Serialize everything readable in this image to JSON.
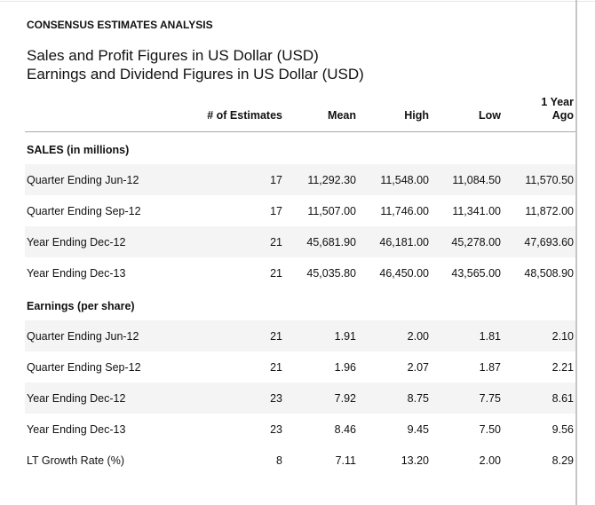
{
  "page": {
    "eyebrow": "CONSENSUS ESTIMATES ANALYSIS",
    "title_line1": "Sales and Profit Figures in US Dollar (USD)",
    "title_line2": "Earnings and Dividend Figures in US Dollar (USD)"
  },
  "table": {
    "columns": {
      "estimates": "# of Estimates",
      "mean": "Mean",
      "high": "High",
      "low": "Low",
      "year_ago": "1 Year Ago"
    },
    "sections": [
      {
        "header": "SALES (in millions)",
        "rows": [
          {
            "label": "Quarter Ending Jun-12",
            "values": [
              "17",
              "11,292.30",
              "11,548.00",
              "11,084.50",
              "11,570.50"
            ],
            "striped": true
          },
          {
            "label": "Quarter Ending Sep-12",
            "values": [
              "17",
              "11,507.00",
              "11,746.00",
              "11,341.00",
              "11,872.00"
            ],
            "striped": false
          },
          {
            "label": "Year Ending Dec-12",
            "values": [
              "21",
              "45,681.90",
              "46,181.00",
              "45,278.00",
              "47,693.60"
            ],
            "striped": true
          },
          {
            "label": "Year Ending Dec-13",
            "values": [
              "21",
              "45,035.80",
              "46,450.00",
              "43,565.00",
              "48,508.90"
            ],
            "striped": false
          }
        ]
      },
      {
        "header": "Earnings (per share)",
        "rows": [
          {
            "label": "Quarter Ending Jun-12",
            "values": [
              "21",
              "1.91",
              "2.00",
              "1.81",
              "2.10"
            ],
            "striped": true
          },
          {
            "label": "Quarter Ending Sep-12",
            "values": [
              "21",
              "1.96",
              "2.07",
              "1.87",
              "2.21"
            ],
            "striped": false
          },
          {
            "label": "Year Ending Dec-12",
            "values": [
              "23",
              "7.92",
              "8.75",
              "7.75",
              "8.61"
            ],
            "striped": true
          },
          {
            "label": "Year Ending Dec-13",
            "values": [
              "23",
              "8.46",
              "9.45",
              "7.50",
              "9.56"
            ],
            "striped": false
          },
          {
            "label": "LT Growth Rate (%)",
            "values": [
              "8",
              "7.11",
              "13.20",
              "2.00",
              "8.29"
            ],
            "striped": false
          }
        ]
      }
    ]
  },
  "colors": {
    "stripe": "#f4f4f4",
    "header_rule": "#a9a9a9",
    "panel_border": "#c6c6c6",
    "top_border": "#e6e6e6",
    "text": "#111111"
  }
}
